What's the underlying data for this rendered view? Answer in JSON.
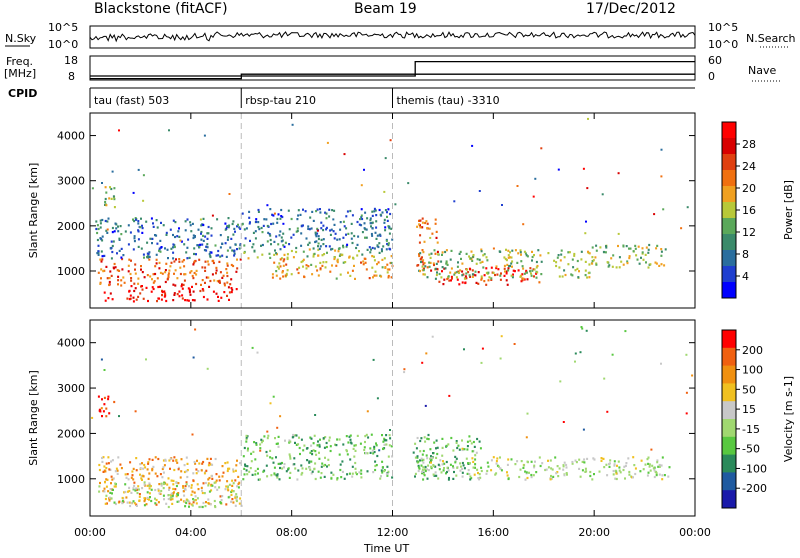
{
  "header": {
    "radar": "Blackstone (fitACF)",
    "beam": "Beam 19",
    "date": "17/Dec/2012"
  },
  "strips": {
    "nsky_label": "N.Sky",
    "nsky_ticks": [
      "10^5",
      "10^0"
    ],
    "nsearch_label": "N.Search",
    "nsearch_ticks": [
      "10^5",
      "10^0"
    ],
    "freq_label": "Freq.",
    "freq_unit": "[MHz]",
    "freq_ticks": [
      "18",
      "8"
    ],
    "nave_label": "Nave",
    "nave_ticks": [
      "60",
      "0"
    ],
    "cpid_label": "CPID",
    "cpid_segments": [
      {
        "label": "tau (fast) 503",
        "start_ut": 0
      },
      {
        "label": "rbsp-tau 210",
        "start_ut": 6
      },
      {
        "label": "themis (tau) -3310",
        "start_ut": 12
      }
    ],
    "freq_steps": [
      {
        "from_ut": 0,
        "to_ut": 6,
        "mhz": 8.6
      },
      {
        "from_ut": 6,
        "to_ut": 12.9,
        "mhz": 10.4
      },
      {
        "from_ut": 12.9,
        "to_ut": 24,
        "mhz": 10.4
      }
    ],
    "nave_steps": [
      {
        "from_ut": 0,
        "to_ut": 12.9,
        "value": 10
      },
      {
        "from_ut": 12.9,
        "to_ut": 24,
        "value": 46
      }
    ]
  },
  "chart_data": [
    {
      "type": "heatmap",
      "name": "power",
      "xlabel": "Time UT",
      "ylabel": "Slant Range [km]",
      "x_range_ut": [
        0,
        24
      ],
      "xticks": [
        "00:00",
        "04:00",
        "08:00",
        "12:00",
        "16:00",
        "20:00",
        "00:00"
      ],
      "ylim": [
        180,
        4500
      ],
      "yticks": [
        1000,
        2000,
        3000,
        4000
      ],
      "colorbar": {
        "label": "Power [dB]",
        "ticks": [
          4,
          8,
          12,
          16,
          20,
          24,
          28
        ],
        "range": [
          0,
          32
        ],
        "colors": [
          "#0000ff",
          "#1f3fcf",
          "#2a6e9e",
          "#3a8a6a",
          "#5aa85a",
          "#b8c838",
          "#f0a020",
          "#f07010",
          "#e04010",
          "#d80000",
          "#ff0000"
        ]
      },
      "regions": [
        {
          "t": [
            0.3,
            6.0
          ],
          "r": [
            700,
            1300
          ],
          "level": 0.75
        },
        {
          "t": [
            0.5,
            5.8
          ],
          "r": [
            350,
            700
          ],
          "level": 0.95
        },
        {
          "t": [
            0.3,
            1.0
          ],
          "r": [
            2400,
            2900
          ],
          "level": 0.45
        },
        {
          "t": [
            0.2,
            6.0
          ],
          "r": [
            1300,
            2200
          ],
          "level": 0.2
        },
        {
          "t": [
            6.0,
            12.0
          ],
          "r": [
            1300,
            1500
          ],
          "level": 0.45
        },
        {
          "t": [
            7.2,
            12.0
          ],
          "r": [
            850,
            1300
          ],
          "level": 0.6
        },
        {
          "t": [
            6.0,
            12.0
          ],
          "r": [
            1500,
            2400
          ],
          "level": 0.2
        },
        {
          "t": [
            12.9,
            13.8
          ],
          "r": [
            1000,
            2200
          ],
          "level": 0.75
        },
        {
          "t": [
            13.8,
            17.8
          ],
          "r": [
            700,
            1100
          ],
          "level": 0.9
        },
        {
          "t": [
            13.0,
            19.8
          ],
          "r": [
            850,
            1500
          ],
          "level": 0.45
        },
        {
          "t": [
            19.8,
            23.0
          ],
          "r": [
            1100,
            1600
          ],
          "level": 0.45
        }
      ]
    },
    {
      "type": "heatmap",
      "name": "velocity",
      "xlabel": "Time UT",
      "ylabel": "Slant Range [km]",
      "x_range_ut": [
        0,
        24
      ],
      "xticks": [
        "00:00",
        "04:00",
        "08:00",
        "12:00",
        "16:00",
        "20:00",
        "00:00"
      ],
      "ylim": [
        180,
        4500
      ],
      "yticks": [
        1000,
        2000,
        3000,
        4000
      ],
      "colorbar": {
        "label": "Velocity [m s-1]",
        "ticks": [
          "200",
          "100",
          "50",
          "15",
          "-15",
          "-50",
          "-100",
          "-200"
        ],
        "colors": [
          "#1a1aaa",
          "#1f5aa0",
          "#2a8a5a",
          "#58c840",
          "#a0d870",
          "#c8c8c8",
          "#f0c020",
          "#f09010",
          "#f06010",
          "#ff0000"
        ]
      },
      "regions": [
        {
          "t": [
            0.3,
            6.0
          ],
          "r": [
            450,
            1500
          ],
          "level": 0.72
        },
        {
          "t": [
            0.3,
            6.0
          ],
          "r": [
            400,
            950
          ],
          "level": 0.5
        },
        {
          "t": [
            0.3,
            1.0
          ],
          "r": [
            2400,
            2900
          ],
          "level": 1.0
        },
        {
          "t": [
            6.0,
            12.0
          ],
          "r": [
            1000,
            2000
          ],
          "level": 0.35
        },
        {
          "t": [
            12.8,
            15.5
          ],
          "r": [
            1000,
            2000
          ],
          "level": 0.35
        },
        {
          "t": [
            13.0,
            23.0
          ],
          "r": [
            1000,
            1500
          ],
          "level": 0.5
        }
      ]
    }
  ]
}
